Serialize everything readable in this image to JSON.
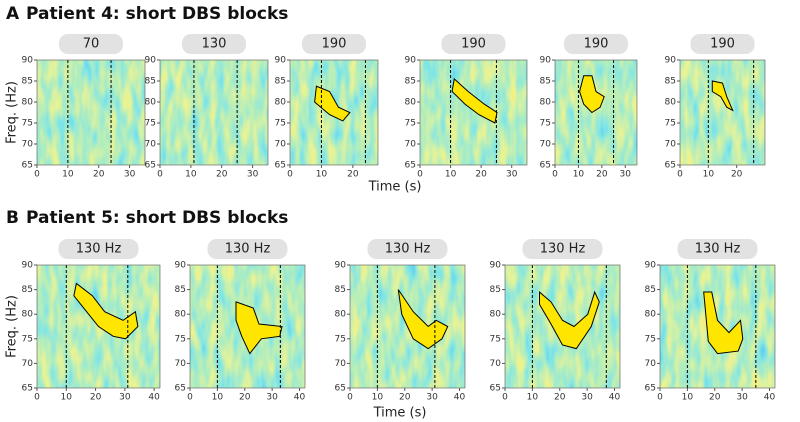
{
  "panels": [
    {
      "label": "A",
      "title": "Patient 4: short DBS blocks",
      "xlabel": "Time (s)"
    },
    {
      "label": "B",
      "title": "Patient 5: short DBS blocks",
      "xlabel": "Time (s)"
    }
  ],
  "chart_data": [
    {
      "type": "heatmap",
      "title": "70",
      "ylabel": "Freq. (Hz)",
      "xlim": [
        0,
        35
      ],
      "ylim": [
        65,
        90
      ],
      "xticks": [
        0,
        10,
        20,
        30
      ],
      "yticks": [
        65,
        70,
        75,
        80,
        85,
        90
      ],
      "stim_on": 10,
      "stim_off": 24
    },
    {
      "type": "heatmap",
      "title": "130",
      "xlim": [
        0,
        35
      ],
      "ylim": [
        65,
        90
      ],
      "xticks": [
        0,
        10,
        20,
        30
      ],
      "yticks": [
        65,
        70,
        75,
        80,
        85,
        90
      ],
      "stim_on": 11,
      "stim_off": 25
    },
    {
      "type": "heatmap",
      "title": "190",
      "xlim": [
        0,
        28
      ],
      "ylim": [
        65,
        90
      ],
      "xticks": [
        0,
        10,
        20
      ],
      "yticks": [
        65,
        70,
        75,
        80,
        85,
        90
      ],
      "stim_on": 10,
      "stim_off": 24
    },
    {
      "type": "heatmap",
      "title": "190",
      "xlim": [
        0,
        35
      ],
      "ylim": [
        65,
        90
      ],
      "xticks": [
        0,
        10,
        20,
        30
      ],
      "yticks": [
        65,
        70,
        75,
        80,
        85,
        90
      ],
      "stim_on": 10,
      "stim_off": 25
    },
    {
      "type": "heatmap",
      "title": "190",
      "xlim": [
        0,
        35
      ],
      "ylim": [
        65,
        90
      ],
      "xticks": [
        0,
        10,
        20,
        30
      ],
      "yticks": [
        65,
        70,
        75,
        80,
        85,
        90
      ],
      "stim_on": 10,
      "stim_off": 25
    },
    {
      "type": "heatmap",
      "title": "190",
      "xlim": [
        0,
        30
      ],
      "ylim": [
        65,
        90
      ],
      "xticks": [
        0,
        10,
        20
      ],
      "yticks": [
        65,
        70,
        75,
        80,
        85,
        90
      ],
      "stim_on": 10,
      "stim_off": 26
    },
    {
      "type": "heatmap",
      "title": "130 Hz",
      "ylabel": "Freq. (Hz)",
      "xlim": [
        0,
        42
      ],
      "ylim": [
        65,
        90
      ],
      "xticks": [
        0,
        10,
        20,
        30,
        40
      ],
      "yticks": [
        65,
        70,
        75,
        80,
        85,
        90
      ],
      "stim_on": 10,
      "stim_off": 31
    },
    {
      "type": "heatmap",
      "title": "130 Hz",
      "xlim": [
        0,
        42
      ],
      "ylim": [
        65,
        90
      ],
      "xticks": [
        0,
        10,
        20,
        30,
        40
      ],
      "yticks": [
        65,
        70,
        75,
        80,
        85,
        90
      ],
      "stim_on": 10,
      "stim_off": 33
    },
    {
      "type": "heatmap",
      "title": "130 Hz",
      "xlim": [
        0,
        42
      ],
      "ylim": [
        65,
        90
      ],
      "xticks": [
        0,
        10,
        20,
        30,
        40
      ],
      "yticks": [
        65,
        70,
        75,
        80,
        85,
        90
      ],
      "stim_on": 10,
      "stim_off": 31
    },
    {
      "type": "heatmap",
      "title": "130 Hz",
      "xlim": [
        0,
        42
      ],
      "ylim": [
        65,
        90
      ],
      "xticks": [
        0,
        10,
        20,
        30,
        40
      ],
      "yticks": [
        65,
        70,
        75,
        80,
        85,
        90
      ],
      "stim_on": 10,
      "stim_off": 37
    },
    {
      "type": "heatmap",
      "title": "130 Hz",
      "xlim": [
        0,
        42
      ],
      "ylim": [
        65,
        90
      ],
      "xticks": [
        0,
        10,
        20,
        30,
        40
      ],
      "yticks": [
        65,
        70,
        75,
        80,
        85,
        90
      ],
      "stim_on": 10,
      "stim_off": 35
    }
  ]
}
